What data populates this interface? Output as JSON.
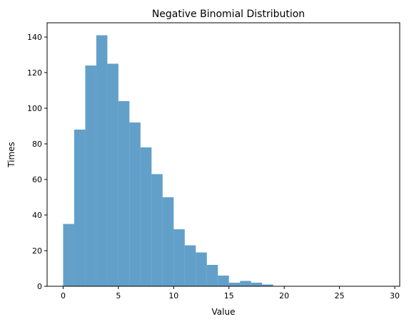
{
  "chart_data": {
    "type": "bar",
    "title": "Negative Binomial Distribution",
    "xlabel": "Value",
    "ylabel": "Times",
    "xlim": [
      -1.45,
      30.45
    ],
    "ylim": [
      0,
      148
    ],
    "x_ticks": [
      0,
      5,
      10,
      15,
      20,
      25,
      30
    ],
    "y_ticks": [
      0,
      20,
      40,
      60,
      80,
      100,
      120,
      140
    ],
    "grid": false,
    "bar_color": "#1f77b4",
    "bar_opacity": 0.7,
    "bin_edges": [
      0,
      1,
      2,
      3,
      4,
      5,
      6,
      7,
      8,
      9,
      10,
      11,
      12,
      13,
      14,
      15,
      16,
      17,
      18,
      19,
      20,
      21,
      22,
      23,
      24,
      25,
      26,
      27,
      28,
      29
    ],
    "values": [
      35,
      88,
      124,
      141,
      125,
      104,
      92,
      78,
      63,
      50,
      32,
      23,
      19,
      12,
      6,
      2,
      3,
      2,
      1,
      0,
      0,
      0,
      0,
      0,
      0,
      0,
      0,
      0,
      0
    ]
  }
}
